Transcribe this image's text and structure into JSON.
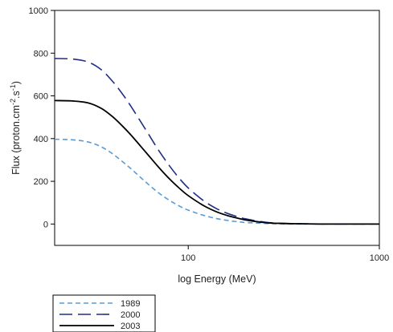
{
  "chart_data": {
    "type": "line",
    "xlabel": "log Energy (MeV)",
    "ylabel": {
      "base": "Flux (proton.cm",
      "sup1": "-2",
      "mid": ".s",
      "sup2": "-1",
      "end": ")"
    },
    "xscale": "log",
    "xlim": [
      20,
      1000
    ],
    "ylim": [
      -100,
      1000
    ],
    "xticks": [
      100,
      1000
    ],
    "xtick_labels": [
      "100",
      "1000"
    ],
    "yticks": [
      0,
      200,
      400,
      600,
      800,
      1000
    ],
    "ytick_labels": [
      "0",
      "200",
      "400",
      "600",
      "800",
      "1000"
    ],
    "grid": false,
    "legend_position": "bottom-left, below plot",
    "x": [
      20,
      25,
      30,
      35,
      40,
      45,
      50,
      60,
      70,
      80,
      90,
      100,
      120,
      140,
      160,
      180,
      200,
      250,
      300,
      400,
      500,
      700,
      1000
    ],
    "series": [
      {
        "name": "1989",
        "color": "#5b9bd5",
        "style": "short-dash",
        "values": [
          397,
          394,
          384,
          362,
          330,
          294,
          260,
          196,
          146,
          110,
          84,
          65,
          41,
          26,
          17,
          11,
          7,
          3,
          1,
          0,
          0,
          0,
          0
        ]
      },
      {
        "name": "2000",
        "color": "#1f2f85",
        "style": "long-dash",
        "values": [
          775,
          772,
          758,
          723,
          670,
          612,
          553,
          441,
          345,
          271,
          213,
          169,
          110,
          73,
          50,
          35,
          24,
          9,
          4,
          1,
          0,
          0,
          0
        ]
      },
      {
        "name": "2003",
        "color": "#000000",
        "style": "solid",
        "values": [
          578,
          576,
          567,
          542,
          504,
          461,
          418,
          336,
          266,
          210,
          167,
          133,
          87,
          58,
          40,
          28,
          19,
          7,
          3,
          1,
          0,
          0,
          0
        ]
      }
    ]
  }
}
